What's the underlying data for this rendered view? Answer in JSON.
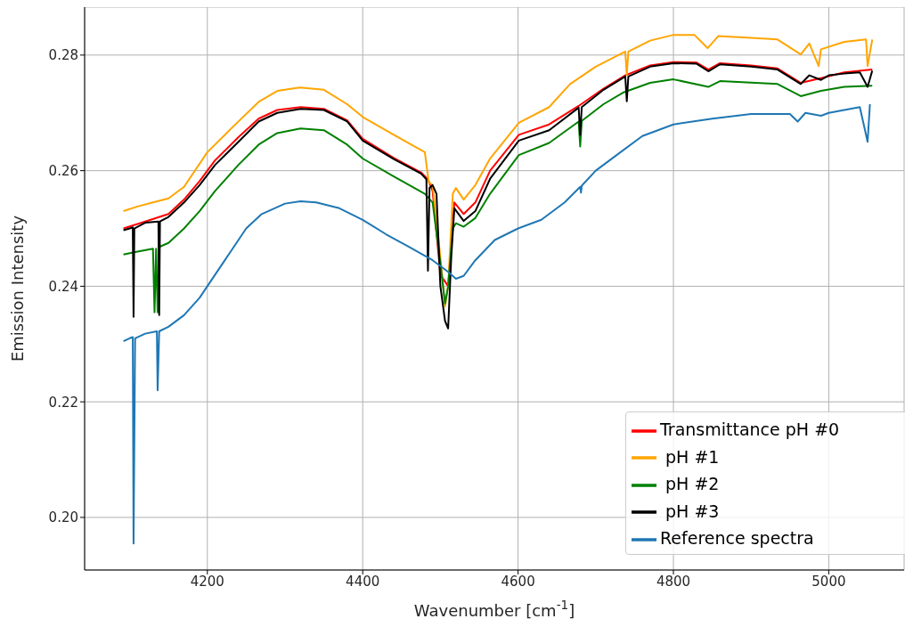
{
  "chart_data": {
    "type": "line",
    "xlabel": "Wavenumber [cm$^{-1}$]",
    "ylabel": "Emission Intensity",
    "xlim": [
      4042,
      5097
    ],
    "xticks": [
      4200,
      4400,
      4600,
      4800,
      5000
    ],
    "ylim": [
      0.1909,
      0.2883
    ],
    "yticks": [
      {
        "value": 0.2,
        "label": "0.20"
      },
      0.22,
      0.24,
      0.26,
      0.28
    ],
    "grid": true,
    "legend": "bottom right",
    "series": [
      {
        "name": "Transmittance pH #0",
        "color": "#ff0000",
        "x": [
          4092,
          4120,
          4150,
          4170,
          4190,
          4210,
          4240,
          4266,
          4290,
          4320,
          4350,
          4380,
          4400,
          4440,
          4475,
          4484,
          4490,
          4500,
          4510,
          4518,
          4530,
          4545,
          4564,
          4601,
          4640,
          4678,
          4710,
          4738,
          4770,
          4800,
          4830,
          4845,
          4860,
          4900,
          4934,
          4964,
          4990,
          5020,
          5056
        ],
        "values": [
          0.25,
          0.2512,
          0.2525,
          0.255,
          0.2582,
          0.2618,
          0.2658,
          0.269,
          0.2705,
          0.271,
          0.2707,
          0.2687,
          0.2655,
          0.2622,
          0.2597,
          0.2585,
          0.2565,
          0.242,
          0.24,
          0.2545,
          0.2525,
          0.2545,
          0.26,
          0.2662,
          0.268,
          0.2712,
          0.2742,
          0.2765,
          0.2782,
          0.2788,
          0.2787,
          0.2775,
          0.2786,
          0.2782,
          0.2777,
          0.2752,
          0.276,
          0.277,
          0.2775
        ]
      },
      {
        "name": " pH #1",
        "color": "#ffa500",
        "x": [
          4092,
          4110,
          4130,
          4150,
          4170,
          4200,
          4230,
          4266,
          4290,
          4319,
          4350,
          4380,
          4400,
          4440,
          4480,
          4485,
          4490,
          4500,
          4506,
          4510,
          4516,
          4520,
          4530,
          4545,
          4564,
          4601,
          4640,
          4667,
          4700,
          4738,
          4740,
          4742,
          4770,
          4800,
          4827,
          4844,
          4858,
          4900,
          4934,
          4964,
          4975,
          4987,
          4990,
          5020,
          5048,
          5050,
          5056
        ],
        "values": [
          0.253,
          0.2538,
          0.2545,
          0.2552,
          0.2572,
          0.2632,
          0.2672,
          0.2719,
          0.2738,
          0.2744,
          0.274,
          0.2715,
          0.2693,
          0.2662,
          0.2632,
          0.258,
          0.2575,
          0.245,
          0.2365,
          0.24,
          0.256,
          0.257,
          0.255,
          0.2575,
          0.2621,
          0.2683,
          0.271,
          0.275,
          0.278,
          0.2806,
          0.2766,
          0.2806,
          0.2825,
          0.2835,
          0.2835,
          0.2812,
          0.2833,
          0.283,
          0.2827,
          0.2801,
          0.282,
          0.2781,
          0.281,
          0.2823,
          0.2827,
          0.2781,
          0.2827
        ]
      },
      {
        "name": " pH #2",
        "color": "#008000",
        "x": [
          4092,
          4110,
          4130,
          4132,
          4134,
          4136,
          4138,
          4150,
          4170,
          4190,
          4210,
          4240,
          4266,
          4290,
          4320,
          4350,
          4380,
          4400,
          4440,
          4480,
          4490,
          4500,
          4506,
          4510,
          4516,
          4520,
          4530,
          4545,
          4564,
          4601,
          4640,
          4678,
          4680,
          4682,
          4710,
          4735,
          4770,
          4800,
          4845,
          4860,
          4934,
          4964,
          4990,
          5020,
          5056
        ],
        "values": [
          0.2455,
          0.246,
          0.2465,
          0.2355,
          0.2465,
          0.2355,
          0.2468,
          0.2475,
          0.25,
          0.253,
          0.2565,
          0.261,
          0.2645,
          0.2665,
          0.2673,
          0.267,
          0.2645,
          0.2621,
          0.259,
          0.256,
          0.2545,
          0.244,
          0.237,
          0.24,
          0.25,
          0.2509,
          0.2503,
          0.2518,
          0.256,
          0.2627,
          0.2648,
          0.2685,
          0.2642,
          0.2686,
          0.2715,
          0.2735,
          0.2752,
          0.2758,
          0.2745,
          0.2755,
          0.275,
          0.2729,
          0.2738,
          0.2745,
          0.2747
        ]
      },
      {
        "name": " pH #3",
        "color": "#000000",
        "x": [
          4092,
          4100,
          4104,
          4105,
          4106,
          4120,
          4137,
          4138,
          4139,
          4150,
          4170,
          4190,
          4210,
          4240,
          4266,
          4290,
          4320,
          4350,
          4380,
          4400,
          4440,
          4475,
          4482,
          4484,
          4486,
          4490,
          4495,
          4500,
          4506,
          4510,
          4514,
          4518,
          4530,
          4545,
          4564,
          4601,
          4640,
          4678,
          4680,
          4682,
          4710,
          4738,
          4740,
          4742,
          4770,
          4800,
          4830,
          4845,
          4860,
          4900,
          4934,
          4964,
          4975,
          4990,
          5000,
          5020,
          5040,
          5050,
          5056
        ],
        "values": [
          0.2497,
          0.25,
          0.2502,
          0.2347,
          0.25,
          0.251,
          0.2512,
          0.235,
          0.2512,
          0.252,
          0.2545,
          0.2575,
          0.261,
          0.265,
          0.2685,
          0.27,
          0.2707,
          0.2705,
          0.2685,
          0.2652,
          0.262,
          0.2595,
          0.2585,
          0.2427,
          0.257,
          0.2575,
          0.256,
          0.24,
          0.234,
          0.2327,
          0.245,
          0.2535,
          0.2513,
          0.253,
          0.2586,
          0.2652,
          0.267,
          0.2709,
          0.2662,
          0.271,
          0.274,
          0.2763,
          0.272,
          0.2763,
          0.278,
          0.2786,
          0.2785,
          0.2772,
          0.2784,
          0.278,
          0.2775,
          0.275,
          0.2765,
          0.2757,
          0.2765,
          0.2768,
          0.277,
          0.2745,
          0.2773
        ]
      },
      {
        "name": "Reference spectra",
        "color": "#1f77b4",
        "x": [
          4092,
          4100,
          4104,
          4105,
          4107,
          4120,
          4135,
          4136,
          4138,
          4150,
          4170,
          4190,
          4210,
          4230,
          4250,
          4270,
          4300,
          4320,
          4340,
          4370,
          4400,
          4430,
          4460,
          4490,
          4510,
          4520,
          4530,
          4545,
          4570,
          4600,
          4630,
          4660,
          4680,
          4681,
          4682,
          4700,
          4730,
          4760,
          4800,
          4850,
          4900,
          4950,
          4960,
          4970,
          4990,
          5000,
          5040,
          5050,
          5053
        ],
        "values": [
          0.2305,
          0.231,
          0.2312,
          0.1955,
          0.231,
          0.2318,
          0.2322,
          0.222,
          0.2322,
          0.233,
          0.235,
          0.238,
          0.242,
          0.246,
          0.25,
          0.2525,
          0.2543,
          0.2547,
          0.2545,
          0.2535,
          0.2515,
          0.249,
          0.2468,
          0.2445,
          0.2425,
          0.2413,
          0.2418,
          0.2445,
          0.248,
          0.25,
          0.2515,
          0.2545,
          0.2572,
          0.2562,
          0.2574,
          0.26,
          0.263,
          0.266,
          0.268,
          0.269,
          0.2698,
          0.2698,
          0.2685,
          0.27,
          0.2695,
          0.27,
          0.271,
          0.265,
          0.2715
        ]
      }
    ]
  }
}
